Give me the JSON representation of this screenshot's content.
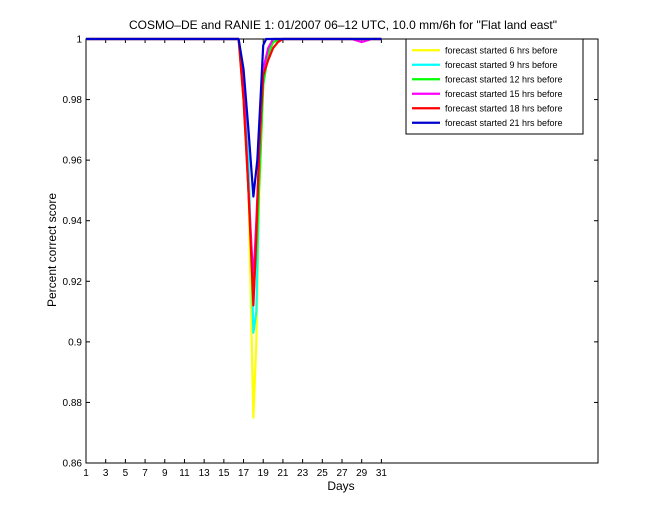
{
  "chart_data": {
    "type": "line",
    "title": "COSMO–DE and RANIE 1: 01/2007 06–12 UTC, 10.0 mm/6h for \"Flat land east\"",
    "xlabel": "Days",
    "ylabel": "Percent correct score",
    "xlim": [
      1,
      53
    ],
    "ylim": [
      0.86,
      1.0
    ],
    "xticks": [
      1,
      3,
      5,
      7,
      9,
      11,
      13,
      15,
      17,
      19,
      21,
      23,
      25,
      27,
      29,
      31
    ],
    "yticks": [
      0.86,
      0.88,
      0.9,
      0.92,
      0.94,
      0.96,
      0.98,
      1
    ],
    "ytick_labels": [
      "0.86",
      "0.88",
      "0.9",
      "0.92",
      "0.94",
      "0.96",
      "0.98",
      "1"
    ],
    "grid": false,
    "legend_position": "top-right",
    "series": [
      {
        "name": "forecast started 6 hrs before",
        "color": "#ffff00",
        "x": [
          1,
          16.5,
          17,
          17.5,
          17.8,
          18,
          18.3,
          18.6,
          19,
          19.5,
          20,
          21,
          31
        ],
        "y": [
          1,
          1,
          0.99,
          0.95,
          0.905,
          0.875,
          0.9,
          0.95,
          0.985,
          0.997,
          1,
          1,
          1
        ]
      },
      {
        "name": "forecast started 9 hrs before",
        "color": "#00ffff",
        "x": [
          1,
          16.5,
          17,
          17.5,
          18,
          18.3,
          18.6,
          19,
          19.5,
          20,
          21,
          31
        ],
        "y": [
          1,
          1,
          0.985,
          0.96,
          0.903,
          0.91,
          0.955,
          0.985,
          0.995,
          1,
          1,
          1
        ]
      },
      {
        "name": "forecast started 12 hrs before",
        "color": "#00ff00",
        "x": [
          1,
          16.5,
          17,
          17.5,
          18,
          18.3,
          18.7,
          19,
          19.5,
          20,
          21,
          31
        ],
        "y": [
          1,
          1,
          0.98,
          0.95,
          0.915,
          0.93,
          0.96,
          0.985,
          0.995,
          0.999,
          1,
          1
        ]
      },
      {
        "name": "forecast started 15 hrs before",
        "color": "#ff00ff",
        "x": [
          1,
          16.5,
          17,
          17.5,
          18,
          18.3,
          18.7,
          19,
          19.5,
          20,
          21,
          28,
          29,
          30,
          31
        ],
        "y": [
          1,
          1,
          0.985,
          0.95,
          0.92,
          0.94,
          0.97,
          0.99,
          0.997,
          1,
          1,
          1,
          0.999,
          1,
          1
        ]
      },
      {
        "name": "forecast started 18 hrs before",
        "color": "#ff0000",
        "x": [
          1,
          16.5,
          17,
          17.5,
          18,
          18.3,
          18.6,
          19,
          19.5,
          20,
          20.5,
          21,
          31
        ],
        "y": [
          1,
          1,
          0.98,
          0.95,
          0.912,
          0.935,
          0.965,
          0.988,
          0.993,
          0.997,
          0.999,
          1,
          1
        ]
      },
      {
        "name": "forecast started 21 hrs before",
        "color": "#0000cc",
        "x": [
          1,
          16.5,
          17,
          17.5,
          18,
          18.4,
          18.8,
          19,
          19.3,
          20,
          31
        ],
        "y": [
          1,
          1,
          0.99,
          0.97,
          0.948,
          0.96,
          0.985,
          0.998,
          1,
          1,
          1
        ]
      }
    ]
  }
}
